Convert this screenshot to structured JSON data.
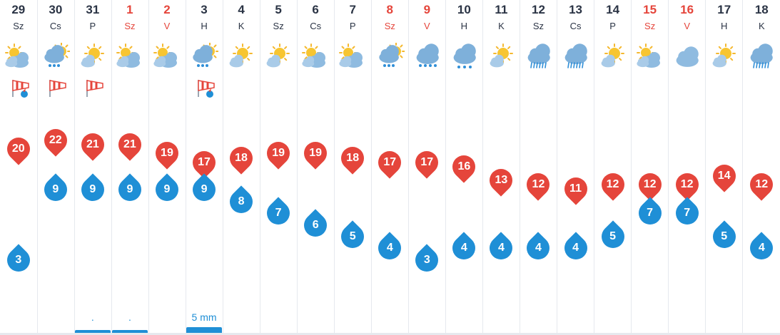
{
  "days": [
    {
      "date": "29",
      "weekday": "Sz",
      "weekend": false,
      "icon": "partly-cloudy-icon",
      "wind": "windsock-storm-icon",
      "max": "20",
      "min": "3",
      "precip": "",
      "bar": 0
    },
    {
      "date": "30",
      "weekday": "Cs",
      "weekend": false,
      "icon": "cloud-rain-sun-icon",
      "wind": "windsock-icon",
      "max": "22",
      "min": "9",
      "precip": "",
      "bar": 0
    },
    {
      "date": "31",
      "weekday": "P",
      "weekend": false,
      "icon": "sun-cloud-icon",
      "wind": "windsock-icon",
      "max": "21",
      "min": "9",
      "precip": ".",
      "bar": 0.08
    },
    {
      "date": "1",
      "weekday": "Sz",
      "weekend": true,
      "icon": "partly-cloudy-icon",
      "wind": "",
      "max": "21",
      "min": "9",
      "precip": ".",
      "bar": 0.08
    },
    {
      "date": "2",
      "weekday": "V",
      "weekend": true,
      "icon": "partly-cloudy-icon",
      "wind": "",
      "max": "19",
      "min": "9",
      "precip": "",
      "bar": 0
    },
    {
      "date": "3",
      "weekday": "H",
      "weekend": false,
      "icon": "cloud-rain-sun-icon",
      "wind": "windsock-storm-icon",
      "max": "17",
      "min": "9",
      "precip": "5 mm",
      "bar": 0.16
    },
    {
      "date": "4",
      "weekday": "K",
      "weekend": false,
      "icon": "sun-cloud-icon",
      "wind": "",
      "max": "18",
      "min": "8",
      "precip": "",
      "bar": 0
    },
    {
      "date": "5",
      "weekday": "Sz",
      "weekend": false,
      "icon": "sun-cloud-icon",
      "wind": "",
      "max": "19",
      "min": "7",
      "precip": "",
      "bar": 0
    },
    {
      "date": "6",
      "weekday": "Cs",
      "weekend": false,
      "icon": "partly-cloudy-icon",
      "wind": "",
      "max": "19",
      "min": "6",
      "precip": "",
      "bar": 0
    },
    {
      "date": "7",
      "weekday": "P",
      "weekend": false,
      "icon": "partly-cloudy-icon",
      "wind": "",
      "max": "18",
      "min": "5",
      "precip": "",
      "bar": 0
    },
    {
      "date": "8",
      "weekday": "Sz",
      "weekend": true,
      "icon": "cloud-rain-sun-icon",
      "wind": "",
      "max": "17",
      "min": "4",
      "precip": "",
      "bar": 0
    },
    {
      "date": "9",
      "weekday": "V",
      "weekend": true,
      "icon": "cloud-rain-icon",
      "wind": "",
      "max": "17",
      "min": "3",
      "precip": "",
      "bar": 0
    },
    {
      "date": "10",
      "weekday": "H",
      "weekend": false,
      "icon": "cloud-drizzle-icon",
      "wind": "",
      "max": "16",
      "min": "4",
      "precip": "",
      "bar": 0
    },
    {
      "date": "11",
      "weekday": "K",
      "weekend": false,
      "icon": "sun-cloud-icon",
      "wind": "",
      "max": "13",
      "min": "4",
      "precip": "",
      "bar": 0
    },
    {
      "date": "12",
      "weekday": "Sz",
      "weekend": false,
      "icon": "cloud-heavy-rain-icon",
      "wind": "",
      "max": "12",
      "min": "4",
      "precip": "",
      "bar": 0
    },
    {
      "date": "13",
      "weekday": "Cs",
      "weekend": false,
      "icon": "cloud-heavy-rain-icon",
      "wind": "",
      "max": "11",
      "min": "4",
      "precip": "",
      "bar": 0
    },
    {
      "date": "14",
      "weekday": "P",
      "weekend": false,
      "icon": "sun-cloud-icon",
      "wind": "",
      "max": "12",
      "min": "5",
      "precip": "",
      "bar": 0
    },
    {
      "date": "15",
      "weekday": "Sz",
      "weekend": true,
      "icon": "partly-cloudy-icon",
      "wind": "",
      "max": "12",
      "min": "7",
      "precip": "",
      "bar": 0
    },
    {
      "date": "16",
      "weekday": "V",
      "weekend": true,
      "icon": "cloud-icon",
      "wind": "",
      "max": "12",
      "min": "7",
      "precip": "",
      "bar": 0
    },
    {
      "date": "17",
      "weekday": "H",
      "weekend": false,
      "icon": "sun-cloud-icon",
      "wind": "",
      "max": "14",
      "min": "5",
      "precip": "",
      "bar": 0
    },
    {
      "date": "18",
      "weekday": "K",
      "weekend": false,
      "icon": "cloud-heavy-rain-icon",
      "wind": "",
      "max": "12",
      "min": "4",
      "precip": "",
      "bar": 0
    }
  ],
  "colors": {
    "max": "#e5453b",
    "min": "#1f8fd6",
    "weekend": "#e5453b",
    "text": "#2b3445",
    "grid": "#e6e9ee"
  }
}
